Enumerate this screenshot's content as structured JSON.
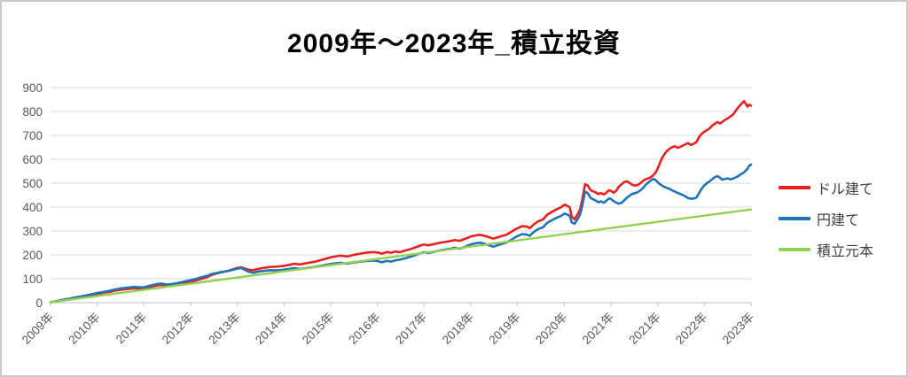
{
  "title": "2009年～2023年_積立投資",
  "colors": {
    "dollar_line": "#e82020",
    "yen_line": "#2173b8",
    "principal_line": "#92d050",
    "grid": "#d9d9d9",
    "axis_text": "#595959",
    "legend_text": "#3f3f3f"
  },
  "chart_data": {
    "type": "line",
    "title": "2009年～2023年_積立投資",
    "xlabel": "",
    "ylabel": "",
    "ylim": [
      0,
      900
    ],
    "y_ticks": [
      0,
      100,
      200,
      300,
      400,
      500,
      600,
      700,
      800,
      900
    ],
    "grid": true,
    "legend_position": "right",
    "x_tick_labels": [
      "2009年",
      "2010年",
      "2011年",
      "2012年",
      "2013年",
      "2014年",
      "2015年",
      "2016年",
      "2017年",
      "2018年",
      "2019年",
      "2020年",
      "2021年",
      "2021年",
      "2022年",
      "2023年"
    ],
    "x_pct": [
      0,
      0.9,
      1.9,
      2.9,
      3.9,
      4.9,
      5.7,
      6.6,
      7.5,
      8.4,
      9.2,
      10.1,
      11.0,
      11.9,
      12.8,
      13.3,
      13.9,
      14.6,
      15.2,
      15.8,
      16.6,
      17.3,
      18.1,
      18.9,
      19.6,
      20.0,
      20.8,
      21.5,
      22.3,
      23.0,
      23.8,
      24.6,
      25.3,
      26.1,
      26.7,
      27.2,
      27.7,
      28.2,
      28.9,
      29.5,
      30.1,
      30.8,
      31.4,
      32.0,
      32.7,
      33.3,
      34.1,
      34.8,
      35.6,
      36.3,
      37.1,
      37.8,
      38.6,
      39.4,
      40.0,
      40.8,
      41.5,
      42.3,
      43.0,
      43.8,
      44.6,
      45.3,
      46.1,
      46.7,
      47.3,
      48.0,
      48.6,
      49.2,
      49.9,
      50.5,
      51.1,
      51.8,
      52.4,
      53.0,
      53.3,
      53.9,
      54.6,
      55.2,
      55.8,
      56.5,
      57.1,
      57.7,
      58.4,
      59.0,
      59.6,
      60.0,
      60.6,
      61.3,
      61.9,
      62.5,
      63.2,
      63.8,
      64.4,
      65.1,
      65.7,
      66.3,
      66.7,
      67.3,
      68.0,
      68.4,
      69.0,
      69.6,
      70.3,
      70.9,
      71.5,
      72.2,
      72.8,
      73.4,
      74.1,
      74.4,
      74.8,
      75.2,
      75.6,
      75.9,
      76.3,
      76.7,
      77.1,
      77.5,
      77.8,
      78.2,
      78.6,
      79.0,
      79.4,
      79.7,
      80.0,
      80.4,
      80.8,
      81.1,
      81.5,
      81.9,
      82.3,
      82.7,
      83.0,
      83.4,
      83.8,
      84.2,
      84.6,
      84.9,
      85.3,
      85.7,
      86.1,
      86.5,
      86.8,
      87.2,
      87.6,
      88.0,
      88.4,
      88.7,
      89.1,
      89.5,
      89.9,
      90.3,
      90.6,
      91.0,
      91.4,
      91.8,
      92.2,
      92.5,
      92.9,
      93.3,
      93.7,
      94.1,
      94.4,
      94.8,
      95.2,
      95.6,
      95.9,
      96.3,
      96.7,
      97.1,
      97.5,
      97.8,
      98.2,
      98.6,
      99.0,
      99.2,
      99.5,
      99.7,
      100
    ],
    "series": [
      {
        "key": "dollar",
        "name": "ドル建て",
        "color": "#e82020",
        "width": 2.6,
        "values": [
          2,
          6,
          11,
          16,
          21,
          26,
          30,
          36,
          41,
          45,
          50,
          54,
          57,
          60,
          58,
          58,
          63,
          68,
          72,
          74,
          70,
          72,
          76,
          80,
          85,
          87,
          93,
          99,
          106,
          116,
          123,
          128,
          133,
          140,
          146,
          148,
          143,
          138,
          136,
          140,
          144,
          147,
          150,
          150,
          152,
          154,
          158,
          163,
          160,
          164,
          168,
          172,
          178,
          185,
          190,
          194,
          197,
          193,
          198,
          203,
          207,
          210,
          212,
          210,
          205,
          212,
          209,
          214,
          211,
          217,
          222,
          228,
          235,
          241,
          243,
          240,
          244,
          248,
          252,
          255,
          258,
          262,
          259,
          265,
          272,
          277,
          281,
          284,
          280,
          275,
          268,
          273,
          279,
          285,
          295,
          306,
          312,
          320,
          318,
          312,
          328,
          340,
          348,
          368,
          379,
          390,
          398,
          410,
          400,
          360,
          349,
          368,
          390,
          430,
          496,
          490,
          470,
          465,
          462,
          455,
          458,
          453,
          462,
          470,
          468,
          460,
          470,
          485,
          495,
          505,
          508,
          500,
          494,
          490,
          492,
          500,
          510,
          516,
          520,
          525,
          535,
          551,
          570,
          600,
          620,
          635,
          645,
          650,
          655,
          648,
          652,
          658,
          662,
          668,
          660,
          665,
          672,
          690,
          705,
          715,
          722,
          730,
          740,
          748,
          756,
          750,
          757,
          765,
          772,
          780,
          790,
          803,
          818,
          832,
          843,
          835,
          820,
          828,
          825
        ]
      },
      {
        "key": "yen",
        "name": "円建て",
        "color": "#2173b8",
        "width": 2.6,
        "values": [
          2,
          7,
          13,
          18,
          24,
          29,
          34,
          40,
          45,
          50,
          55,
          60,
          63,
          66,
          64,
          64,
          69,
          74,
          78,
          80,
          76,
          78,
          82,
          87,
          92,
          94,
          100,
          106,
          112,
          120,
          125,
          129,
          133,
          138,
          143,
          145,
          138,
          130,
          125,
          129,
          132,
          134,
          136,
          135,
          136,
          138,
          141,
          145,
          141,
          144,
          147,
          150,
          154,
          159,
          162,
          165,
          167,
          163,
          167,
          170,
          173,
          175,
          176,
          174,
          169,
          175,
          172,
          177,
          180,
          185,
          190,
          196,
          203,
          209,
          211,
          208,
          212,
          216,
          220,
          223,
          226,
          230,
          226,
          232,
          239,
          244,
          248,
          251,
          247,
          241,
          234,
          240,
          246,
          252,
          262,
          273,
          279,
          287,
          285,
          280,
          296,
          308,
          315,
          334,
          344,
          355,
          362,
          373,
          364,
          336,
          330,
          348,
          368,
          405,
          465,
          458,
          438,
          432,
          428,
          420,
          424,
          418,
          428,
          436,
          434,
          424,
          418,
          414,
          418,
          428,
          440,
          448,
          455,
          458,
          462,
          470,
          480,
          492,
          502,
          512,
          518,
          510,
          500,
          492,
          485,
          480,
          476,
          470,
          465,
          460,
          455,
          450,
          445,
          438,
          435,
          436,
          440,
          455,
          475,
          490,
          500,
          508,
          515,
          525,
          530,
          522,
          515,
          518,
          520,
          516,
          520,
          524,
          530,
          538,
          545,
          552,
          560,
          572,
          578
        ]
      },
      {
        "key": "principal",
        "name": "積立元本",
        "color": "#92d050",
        "width": 2.4,
        "x": [
          0,
          100
        ],
        "values": [
          2,
          390
        ]
      }
    ]
  }
}
